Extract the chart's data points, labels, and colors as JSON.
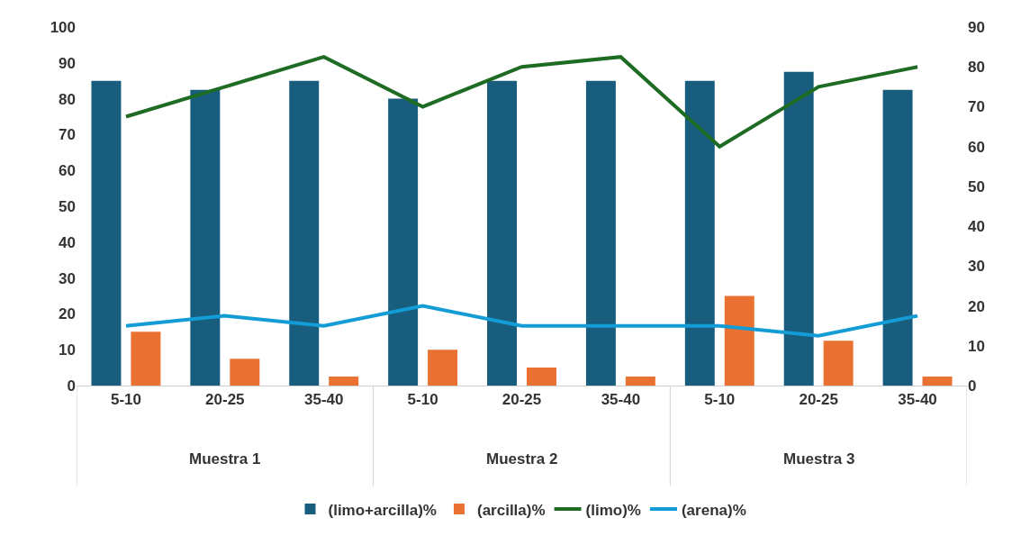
{
  "chart_data": {
    "type": "bar",
    "categories": [
      "5-10",
      "20-25",
      "35-40",
      "5-10",
      "20-25",
      "35-40",
      "5-10",
      "20-25",
      "35-40"
    ],
    "series": [
      {
        "name": "(limo+arcilla)%",
        "color": "#185d7e",
        "values": [
          85,
          82.5,
          85,
          80,
          85,
          85,
          85,
          87.5,
          82.5
        ]
      },
      {
        "name": "(arcilla)%",
        "color": "#e97132",
        "values": [
          15,
          7.5,
          2.5,
          10,
          5,
          2.5,
          25,
          12.5,
          2.5
        ]
      },
      {
        "name": "(limo)%",
        "type": "line",
        "axis": "y2",
        "color": "#1e6b24",
        "values": [
          67.5,
          75,
          82.5,
          70,
          80,
          82.5,
          60,
          75,
          80
        ]
      },
      {
        "name": "(arena)%",
        "type": "line",
        "axis": "y2",
        "color": "#139cd6",
        "values": [
          15,
          17.5,
          15,
          20,
          15,
          15,
          15,
          12.5,
          17.5
        ]
      }
    ],
    "annotations": [
      "Muestra 1",
      "Muestra 2",
      "Muestra 3"
    ],
    "ylim": [
      0,
      100
    ],
    "yticks": [
      0,
      10,
      20,
      30,
      40,
      50,
      60,
      70,
      80,
      90,
      100
    ],
    "y2lim": [
      0,
      90
    ],
    "y2ticks": [
      0,
      10,
      20,
      30,
      40,
      50,
      60,
      70,
      80,
      90
    ],
    "grid": false,
    "legend": "bottom",
    "marker": "none",
    "line_style": "solid"
  }
}
